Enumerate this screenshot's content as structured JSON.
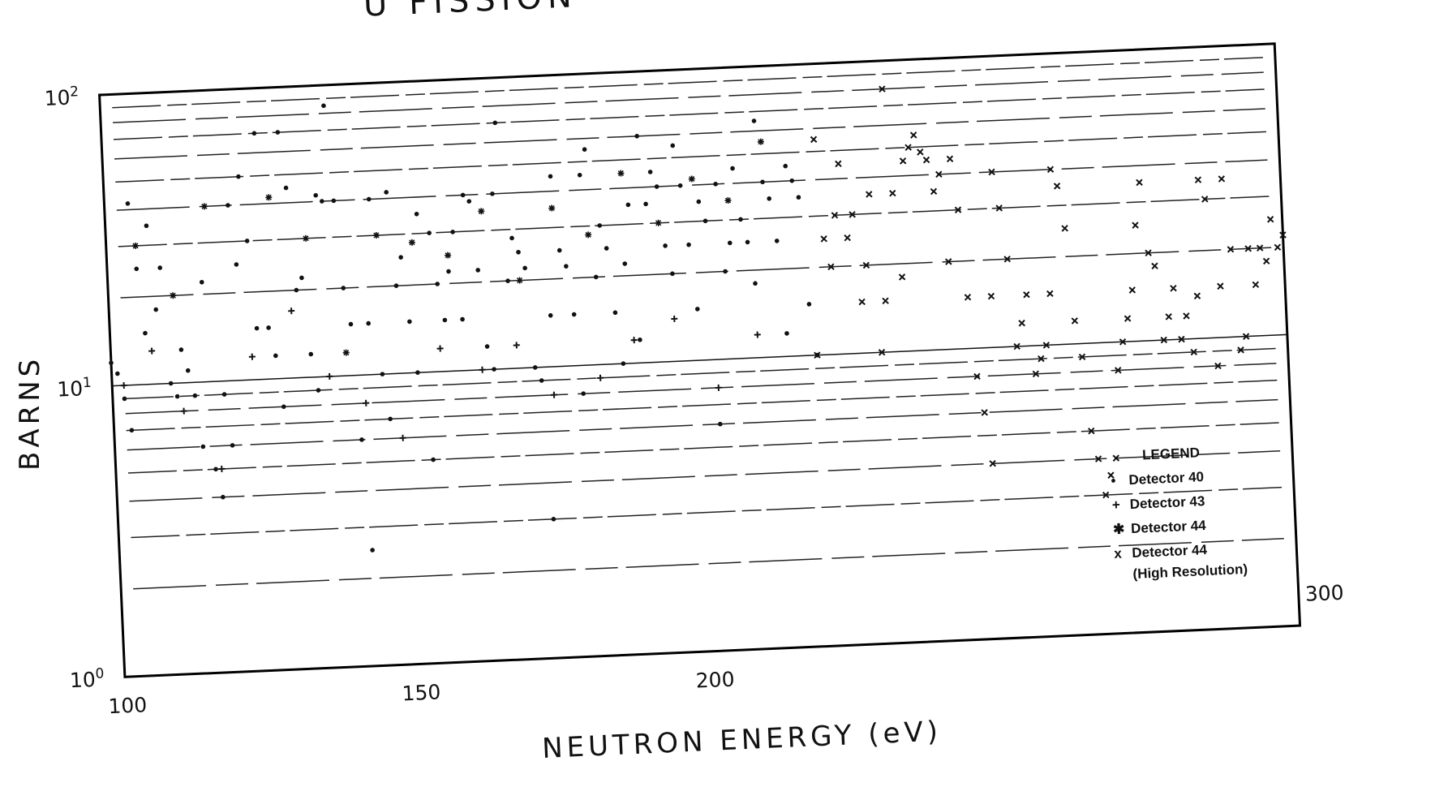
{
  "title": "U FISSION",
  "chart_data": {
    "type": "scatter",
    "xlabel": "NEUTRON ENERGY (eV)",
    "ylabel": "BARNS",
    "xlim": [
      100,
      300
    ],
    "ylim": [
      1,
      100
    ],
    "yscale": "log",
    "grid": "partial horizontal lines",
    "x_ticks": [
      {
        "value": 100,
        "label": "100"
      },
      {
        "value": 150,
        "label": "150"
      },
      {
        "value": 200,
        "label": "200"
      },
      {
        "value": 300,
        "label": "300"
      }
    ],
    "y_ticks": [
      {
        "value": 1,
        "base": "10",
        "exp": "0"
      },
      {
        "value": 10,
        "base": "10",
        "exp": "1"
      },
      {
        "value": 100,
        "base": "10",
        "exp": "2"
      }
    ],
    "legend": {
      "title": "LEGEND",
      "position": "lower-right",
      "entries": [
        {
          "symbol": "•",
          "label": "Detector 40"
        },
        {
          "symbol": "+",
          "label": "Detector 43"
        },
        {
          "symbol": "✱",
          "label": "Detector 44"
        },
        {
          "symbol": "x",
          "label": "Detector 44"
        }
      ],
      "note": "(High Resolution)"
    },
    "series": [
      {
        "marker": "dot",
        "points": [
          [
            100,
            12
          ],
          [
            101,
            11
          ],
          [
            102,
            9
          ],
          [
            103,
            7
          ],
          [
            104,
            42
          ],
          [
            105,
            25
          ],
          [
            106,
            15
          ],
          [
            107,
            35
          ],
          [
            108,
            18
          ],
          [
            109,
            25
          ],
          [
            110,
            10
          ],
          [
            111,
            9
          ],
          [
            112,
            13
          ],
          [
            113,
            11
          ],
          [
            114,
            9
          ],
          [
            115,
            6
          ],
          [
            116,
            22
          ],
          [
            117,
            5
          ],
          [
            118,
            4
          ],
          [
            119,
            9
          ],
          [
            120,
            6
          ],
          [
            121,
            40
          ],
          [
            122,
            25
          ],
          [
            123,
            50
          ],
          [
            124,
            30
          ],
          [
            125,
            15
          ],
          [
            126,
            70
          ],
          [
            127,
            15
          ],
          [
            128,
            12
          ],
          [
            129,
            8
          ],
          [
            130,
            70
          ],
          [
            131,
            45
          ],
          [
            132,
            20
          ],
          [
            133,
            22
          ],
          [
            134,
            12
          ],
          [
            135,
            9
          ],
          [
            136,
            42
          ],
          [
            137,
            40
          ],
          [
            138,
            85
          ],
          [
            139,
            40
          ],
          [
            140,
            20
          ],
          [
            141,
            15
          ],
          [
            142,
            6
          ],
          [
            143,
            2.5
          ],
          [
            144,
            15
          ],
          [
            145,
            40
          ],
          [
            146,
            10
          ],
          [
            147,
            7
          ],
          [
            148,
            42
          ],
          [
            149,
            20
          ],
          [
            150,
            25
          ],
          [
            151,
            15
          ],
          [
            152,
            10
          ],
          [
            153,
            35
          ],
          [
            154,
            5
          ],
          [
            155,
            30
          ],
          [
            156,
            20
          ],
          [
            157,
            15
          ],
          [
            158,
            22
          ],
          [
            159,
            30
          ],
          [
            160,
            15
          ],
          [
            161,
            40
          ],
          [
            162,
            38
          ],
          [
            163,
            22
          ],
          [
            164,
            12
          ],
          [
            165,
            10
          ],
          [
            166,
            40
          ],
          [
            167,
            70
          ],
          [
            168,
            20
          ],
          [
            169,
            28
          ],
          [
            170,
            25
          ],
          [
            171,
            22
          ],
          [
            172,
            10
          ],
          [
            173,
            9
          ],
          [
            174,
            3
          ],
          [
            175,
            15
          ],
          [
            176,
            45
          ],
          [
            177,
            25
          ],
          [
            178,
            22
          ],
          [
            179,
            15
          ],
          [
            180,
            8
          ],
          [
            181,
            45
          ],
          [
            182,
            55
          ],
          [
            183,
            20
          ],
          [
            184,
            30
          ],
          [
            185,
            25
          ],
          [
            186,
            15
          ],
          [
            187,
            10
          ],
          [
            188,
            22
          ],
          [
            189,
            35
          ],
          [
            190,
            12
          ],
          [
            191,
            60
          ],
          [
            192,
            35
          ],
          [
            193,
            45
          ],
          [
            194,
            40
          ],
          [
            195,
            25
          ],
          [
            196,
            20
          ],
          [
            197,
            55
          ],
          [
            198,
            40
          ],
          [
            199,
            25
          ],
          [
            200,
            15
          ],
          [
            201,
            35
          ],
          [
            202,
            30
          ],
          [
            203,
            6
          ],
          [
            204,
            40
          ],
          [
            205,
            20
          ],
          [
            206,
            25
          ],
          [
            207,
            45
          ],
          [
            208,
            30
          ],
          [
            209,
            25
          ],
          [
            210,
            18
          ],
          [
            211,
            65
          ],
          [
            212,
            40
          ],
          [
            213,
            35
          ],
          [
            214,
            25
          ],
          [
            215,
            12
          ],
          [
            216,
            45
          ],
          [
            217,
            40
          ],
          [
            218,
            35
          ],
          [
            219,
            15
          ],
          [
            220,
            10
          ]
        ]
      },
      {
        "marker": "cross",
        "points": [
          [
            102,
            10
          ],
          [
            107,
            13
          ],
          [
            112,
            8
          ],
          [
            118,
            5
          ],
          [
            124,
            12
          ],
          [
            131,
            17
          ],
          [
            137,
            10
          ],
          [
            143,
            8
          ],
          [
            149,
            6
          ],
          [
            156,
            12
          ],
          [
            163,
            10
          ],
          [
            169,
            12
          ],
          [
            175,
            8
          ],
          [
            183,
            9
          ],
          [
            189,
            12
          ],
          [
            196,
            14
          ],
          [
            203,
            8
          ],
          [
            210,
            12
          ]
        ]
      },
      {
        "marker": "star",
        "points": [
          [
            105,
            30
          ],
          [
            111,
            20
          ],
          [
            117,
            40
          ],
          [
            128,
            42
          ],
          [
            134,
            30
          ],
          [
            140,
            12
          ],
          [
            146,
            30
          ],
          [
            152,
            28
          ],
          [
            158,
            25
          ],
          [
            164,
            35
          ],
          [
            170,
            20
          ],
          [
            176,
            35
          ],
          [
            182,
            28
          ],
          [
            188,
            45
          ],
          [
            194,
            30
          ],
          [
            200,
            42
          ],
          [
            206,
            35
          ],
          [
            212,
            55
          ]
        ]
      },
      {
        "marker": "x",
        "points": [
          [
            220,
            10
          ],
          [
            221,
            55
          ],
          [
            222,
            25
          ],
          [
            223,
            20
          ],
          [
            224,
            30
          ],
          [
            225,
            45
          ],
          [
            226,
            25
          ],
          [
            227,
            30
          ],
          [
            228,
            15
          ],
          [
            229,
            20
          ],
          [
            230,
            35
          ],
          [
            231,
            10
          ],
          [
            232,
            15
          ],
          [
            233,
            80
          ],
          [
            234,
            35
          ],
          [
            235,
            18
          ],
          [
            236,
            45
          ],
          [
            237,
            50
          ],
          [
            238,
            55
          ],
          [
            239,
            48
          ],
          [
            240,
            45
          ],
          [
            241,
            35
          ],
          [
            242,
            40
          ],
          [
            243,
            20
          ],
          [
            244,
            45
          ],
          [
            245,
            30
          ],
          [
            246,
            15
          ],
          [
            247,
            8
          ],
          [
            248,
            6
          ],
          [
            249,
            4
          ],
          [
            250,
            15
          ],
          [
            251,
            40
          ],
          [
            252,
            30
          ],
          [
            253,
            20
          ],
          [
            254,
            10
          ],
          [
            255,
            12
          ],
          [
            256,
            15
          ],
          [
            257,
            8
          ],
          [
            258,
            9
          ],
          [
            259,
            10
          ],
          [
            260,
            15
          ],
          [
            261,
            40
          ],
          [
            262,
            35
          ],
          [
            263,
            25
          ],
          [
            264,
            12
          ],
          [
            265,
            9
          ],
          [
            266,
            5
          ],
          [
            267,
            4
          ],
          [
            268,
            3
          ],
          [
            269,
            3.5
          ],
          [
            270,
            4
          ],
          [
            271,
            8
          ],
          [
            272,
            10
          ],
          [
            273,
            12
          ],
          [
            274,
            15
          ],
          [
            275,
            25
          ],
          [
            276,
            35
          ],
          [
            277,
            20
          ],
          [
            278,
            18
          ],
          [
            279,
            10
          ],
          [
            280,
            12
          ],
          [
            281,
            15
          ],
          [
            282,
            10
          ],
          [
            283,
            12
          ],
          [
            284,
            9
          ],
          [
            285,
            14
          ],
          [
            286,
            35
          ],
          [
            287,
            30
          ],
          [
            288,
            8
          ],
          [
            289,
            15
          ],
          [
            290,
            35
          ],
          [
            291,
            20
          ],
          [
            292,
            9
          ],
          [
            293,
            10
          ],
          [
            294,
            20
          ],
          [
            295,
            15
          ],
          [
            296,
            20
          ],
          [
            297,
            18
          ],
          [
            298,
            25
          ],
          [
            299,
            20
          ],
          [
            300,
            22
          ]
        ]
      }
    ]
  }
}
